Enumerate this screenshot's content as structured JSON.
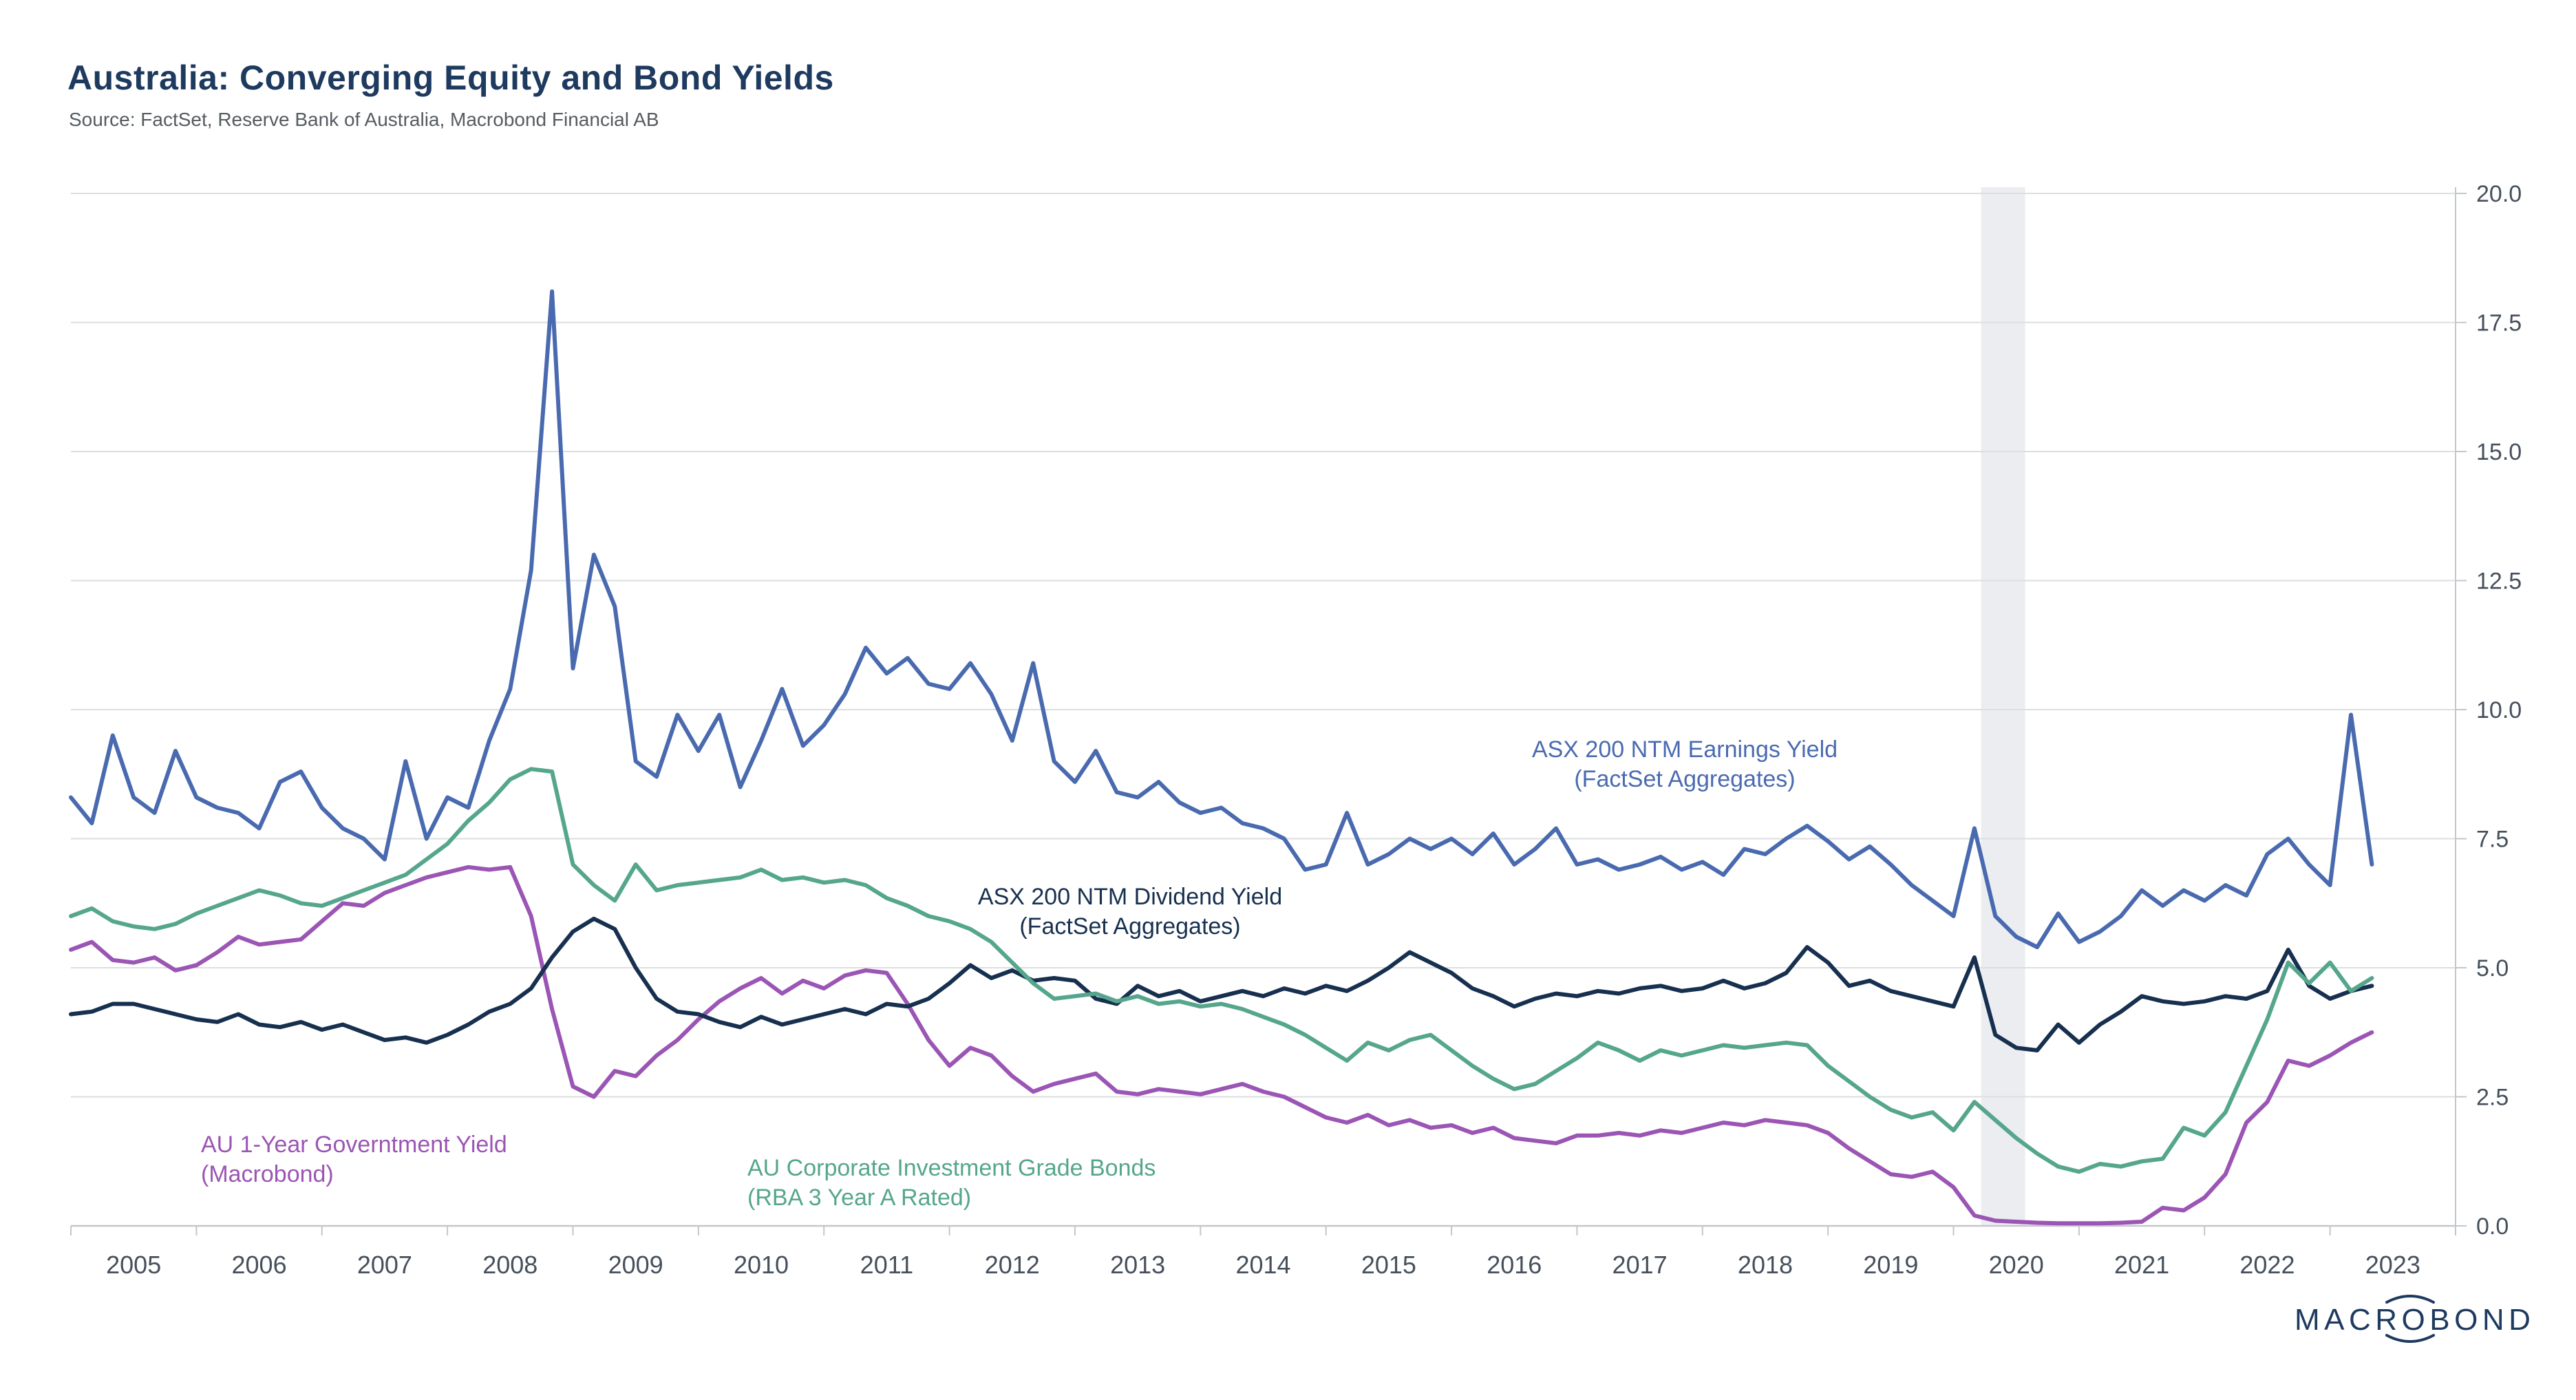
{
  "header": {
    "title": "Australia: Converging Equity and Bond Yields",
    "source": "Source: FactSet, Reserve Bank of Australia, Macrobond Financial AB"
  },
  "logo": {
    "text": "MACROBOND"
  },
  "annotations": {
    "earnings": {
      "line1": "ASX 200 NTM Earnings Yield",
      "line2": "(FactSet Aggregates)"
    },
    "dividend": {
      "line1": "ASX 200 NTM Dividend Yield",
      "line2": "(FactSet Aggregates)"
    },
    "govt": {
      "line1": "AU 1-Year Governtment Yield",
      "line2": "(Macrobond)"
    },
    "corp": {
      "line1": "AU Corporate Investment Grade Bonds",
      "line2": "(RBA 3 Year A Rated)"
    }
  },
  "chart_data": {
    "type": "line",
    "title": "Australia: Converging Equity and Bond Yields",
    "xlabel": "",
    "ylabel": "",
    "x_axis": {
      "range": [
        2005,
        2024
      ],
      "year_labels": [
        2005,
        2006,
        2007,
        2008,
        2009,
        2010,
        2011,
        2012,
        2013,
        2014,
        2015,
        2016,
        2017,
        2018,
        2019,
        2020,
        2021,
        2022,
        2023
      ]
    },
    "y_axis": {
      "range": [
        0,
        20
      ],
      "tick_step": 2.5,
      "position": "right",
      "tick_labels": [
        "0.0",
        "2.5",
        "5.0",
        "7.5",
        "10.0",
        "12.5",
        "15.0",
        "17.5",
        "20.0"
      ]
    },
    "grid": true,
    "recession_band": {
      "from": 2020.22,
      "to": 2020.57,
      "color": "#ebedf0"
    },
    "x_start": 2005.0,
    "x_step": 0.1666667,
    "series": [
      {
        "id": "govt",
        "name": "AU 1-Year Governtment Yield (Macrobond)",
        "color": "#9b55b4",
        "values": [
          5.35,
          5.5,
          5.15,
          5.1,
          5.2,
          4.95,
          5.05,
          5.3,
          5.6,
          5.45,
          5.5,
          5.55,
          5.9,
          6.25,
          6.2,
          6.45,
          6.6,
          6.75,
          6.85,
          6.95,
          6.9,
          6.95,
          6.0,
          4.2,
          2.7,
          2.5,
          3.0,
          2.9,
          3.3,
          3.6,
          4.0,
          4.35,
          4.6,
          4.8,
          4.5,
          4.75,
          4.6,
          4.85,
          4.95,
          4.9,
          4.3,
          3.6,
          3.1,
          3.45,
          3.3,
          2.9,
          2.6,
          2.75,
          2.85,
          2.95,
          2.6,
          2.55,
          2.65,
          2.6,
          2.55,
          2.65,
          2.75,
          2.6,
          2.5,
          2.3,
          2.1,
          2.0,
          2.15,
          1.95,
          2.05,
          1.9,
          1.95,
          1.8,
          1.9,
          1.7,
          1.65,
          1.6,
          1.75,
          1.75,
          1.8,
          1.75,
          1.85,
          1.8,
          1.9,
          2.0,
          1.95,
          2.05,
          2.0,
          1.95,
          1.8,
          1.5,
          1.25,
          1.0,
          0.95,
          1.05,
          0.75,
          0.2,
          0.1,
          0.08,
          0.06,
          0.05,
          0.05,
          0.05,
          0.06,
          0.08,
          0.35,
          0.3,
          0.55,
          1.0,
          2.0,
          2.4,
          3.2,
          3.1,
          3.3,
          3.55,
          3.75
        ]
      },
      {
        "id": "dividend",
        "name": "ASX 200 NTM Dividend Yield (FactSet Aggregates)",
        "color": "#17304f",
        "values": [
          4.1,
          4.15,
          4.3,
          4.3,
          4.2,
          4.1,
          4.0,
          3.95,
          4.1,
          3.9,
          3.85,
          3.95,
          3.8,
          3.9,
          3.75,
          3.6,
          3.65,
          3.55,
          3.7,
          3.9,
          4.15,
          4.3,
          4.6,
          5.2,
          5.7,
          5.95,
          5.75,
          5.0,
          4.4,
          4.15,
          4.1,
          3.95,
          3.85,
          4.05,
          3.9,
          4.0,
          4.1,
          4.2,
          4.1,
          4.3,
          4.25,
          4.4,
          4.7,
          5.05,
          4.8,
          4.95,
          4.75,
          4.8,
          4.75,
          4.4,
          4.3,
          4.65,
          4.45,
          4.55,
          4.35,
          4.45,
          4.55,
          4.45,
          4.6,
          4.5,
          4.65,
          4.55,
          4.75,
          5.0,
          5.3,
          5.1,
          4.9,
          4.6,
          4.45,
          4.25,
          4.4,
          4.5,
          4.45,
          4.55,
          4.5,
          4.6,
          4.65,
          4.55,
          4.6,
          4.75,
          4.6,
          4.7,
          4.9,
          5.4,
          5.1,
          4.65,
          4.75,
          4.55,
          4.45,
          4.35,
          4.25,
          5.2,
          3.7,
          3.45,
          3.4,
          3.9,
          3.55,
          3.9,
          4.15,
          4.45,
          4.35,
          4.3,
          4.35,
          4.45,
          4.4,
          4.55,
          5.35,
          4.65,
          4.4,
          4.55,
          4.65
        ]
      },
      {
        "id": "corp",
        "name": "AU Corporate Investment Grade Bonds (RBA 3 Year A Rated)",
        "color": "#55a68c",
        "values": [
          6.0,
          6.15,
          5.9,
          5.8,
          5.75,
          5.85,
          6.05,
          6.2,
          6.35,
          6.5,
          6.4,
          6.25,
          6.2,
          6.35,
          6.5,
          6.65,
          6.8,
          7.1,
          7.4,
          7.85,
          8.2,
          8.65,
          8.85,
          8.8,
          7.0,
          6.6,
          6.3,
          7.0,
          6.5,
          6.6,
          6.65,
          6.7,
          6.75,
          6.9,
          6.7,
          6.75,
          6.65,
          6.7,
          6.6,
          6.35,
          6.2,
          6.0,
          5.9,
          5.75,
          5.5,
          5.1,
          4.7,
          4.4,
          4.45,
          4.5,
          4.35,
          4.45,
          4.3,
          4.35,
          4.25,
          4.3,
          4.2,
          4.05,
          3.9,
          3.7,
          3.45,
          3.2,
          3.55,
          3.4,
          3.6,
          3.7,
          3.4,
          3.1,
          2.85,
          2.65,
          2.75,
          3.0,
          3.25,
          3.55,
          3.4,
          3.2,
          3.4,
          3.3,
          3.4,
          3.5,
          3.45,
          3.5,
          3.55,
          3.5,
          3.1,
          2.8,
          2.5,
          2.25,
          2.1,
          2.2,
          1.85,
          2.4,
          2.05,
          1.7,
          1.4,
          1.15,
          1.05,
          1.2,
          1.15,
          1.25,
          1.3,
          1.9,
          1.75,
          2.2,
          3.1,
          4.0,
          5.1,
          4.7,
          5.1,
          4.55,
          4.8
        ]
      },
      {
        "id": "earnings",
        "name": "ASX 200 NTM Earnings Yield (FactSet Aggregates)",
        "color": "#4a6ab0",
        "values": [
          8.3,
          7.8,
          9.5,
          8.3,
          8.0,
          9.2,
          8.3,
          8.1,
          8.0,
          7.7,
          8.6,
          8.8,
          8.1,
          7.7,
          7.5,
          7.1,
          9.0,
          7.5,
          8.3,
          8.1,
          9.4,
          10.4,
          12.7,
          18.1,
          10.8,
          13.0,
          12.0,
          9.0,
          8.7,
          9.9,
          9.2,
          9.9,
          8.5,
          9.4,
          10.4,
          9.3,
          9.7,
          10.3,
          11.2,
          10.7,
          11.0,
          10.5,
          10.4,
          10.9,
          10.3,
          9.4,
          10.9,
          9.0,
          8.6,
          9.2,
          8.4,
          8.3,
          8.6,
          8.2,
          8.0,
          8.1,
          7.8,
          7.7,
          7.5,
          6.9,
          7.0,
          8.0,
          7.0,
          7.2,
          7.5,
          7.3,
          7.5,
          7.2,
          7.6,
          7.0,
          7.3,
          7.7,
          7.0,
          7.1,
          6.9,
          7.0,
          7.15,
          6.9,
          7.05,
          6.8,
          7.3,
          7.2,
          7.5,
          7.75,
          7.45,
          7.1,
          7.35,
          7.0,
          6.6,
          6.3,
          6.0,
          7.7,
          6.0,
          5.6,
          5.4,
          6.05,
          5.5,
          5.7,
          6.0,
          6.5,
          6.2,
          6.5,
          6.3,
          6.6,
          6.4,
          7.2,
          7.5,
          7.0,
          6.6,
          9.9,
          7.0
        ]
      }
    ],
    "colors": {
      "grid": "#dcdee0",
      "axis": "#c3c7cb",
      "tick_text": "#46505c",
      "title": "#1e3a5f",
      "source_text": "#555b60",
      "band": "#ebedf0"
    }
  }
}
